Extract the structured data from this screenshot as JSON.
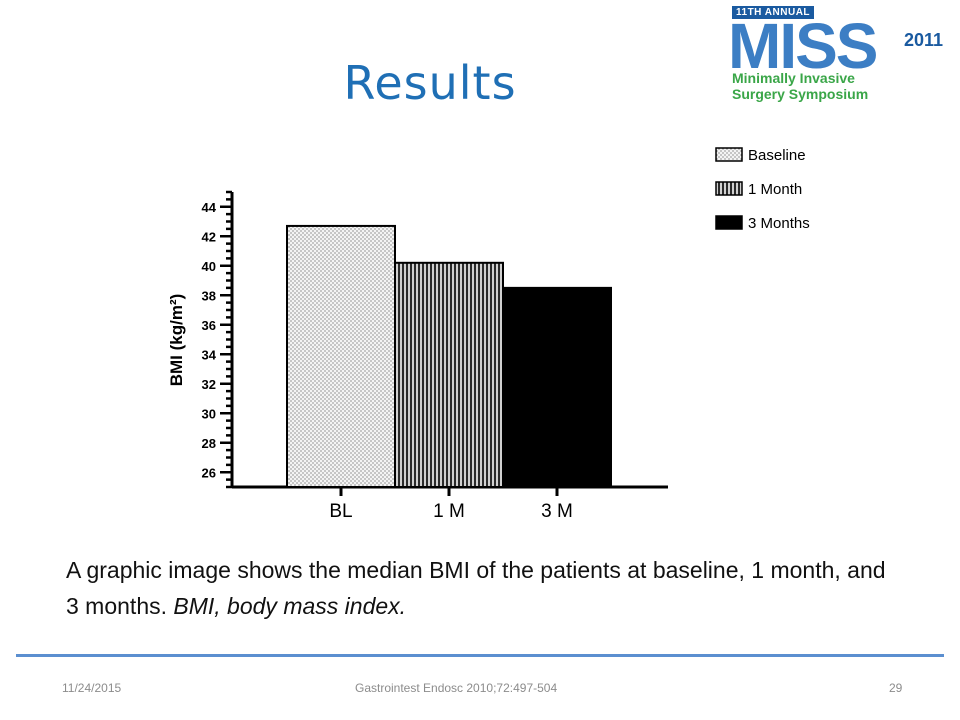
{
  "slide": {
    "title": "Results",
    "caption_normal": "A graphic image shows the median BMI of the patients at baseline, 1 month, and 3 months.",
    "caption_italic": "BMI, body mass index."
  },
  "logo": {
    "annual": "11TH ANNUAL",
    "name": "MISS",
    "year": "2011",
    "line1": "Minimally Invasive",
    "line2": "Surgery Symposium"
  },
  "footer": {
    "date": "11/24/2015",
    "source": "Gastrointest Endosc 2010;72:497-504",
    "page": "29"
  },
  "colors": {
    "title": "#1f6fb5",
    "logo_blue": "#3c7ec4",
    "logo_green": "#3aa648",
    "rule": "#5b8fd0"
  },
  "chart_data": {
    "type": "bar",
    "categories": [
      "BL",
      "1 M",
      "3 M"
    ],
    "values": [
      42.7,
      40.2,
      38.5
    ],
    "ylabel": "BMI (kg/m²)",
    "ylim": [
      25,
      45
    ],
    "yticks": [
      26,
      28,
      30,
      32,
      34,
      36,
      38,
      40,
      42,
      44
    ],
    "legend": [
      "Baseline",
      "1 Month",
      "3 Months"
    ],
    "legend_position": "top-right",
    "fill_patterns": [
      "dotted",
      "vertical-stripes",
      "solid-black"
    ],
    "grid": false
  }
}
